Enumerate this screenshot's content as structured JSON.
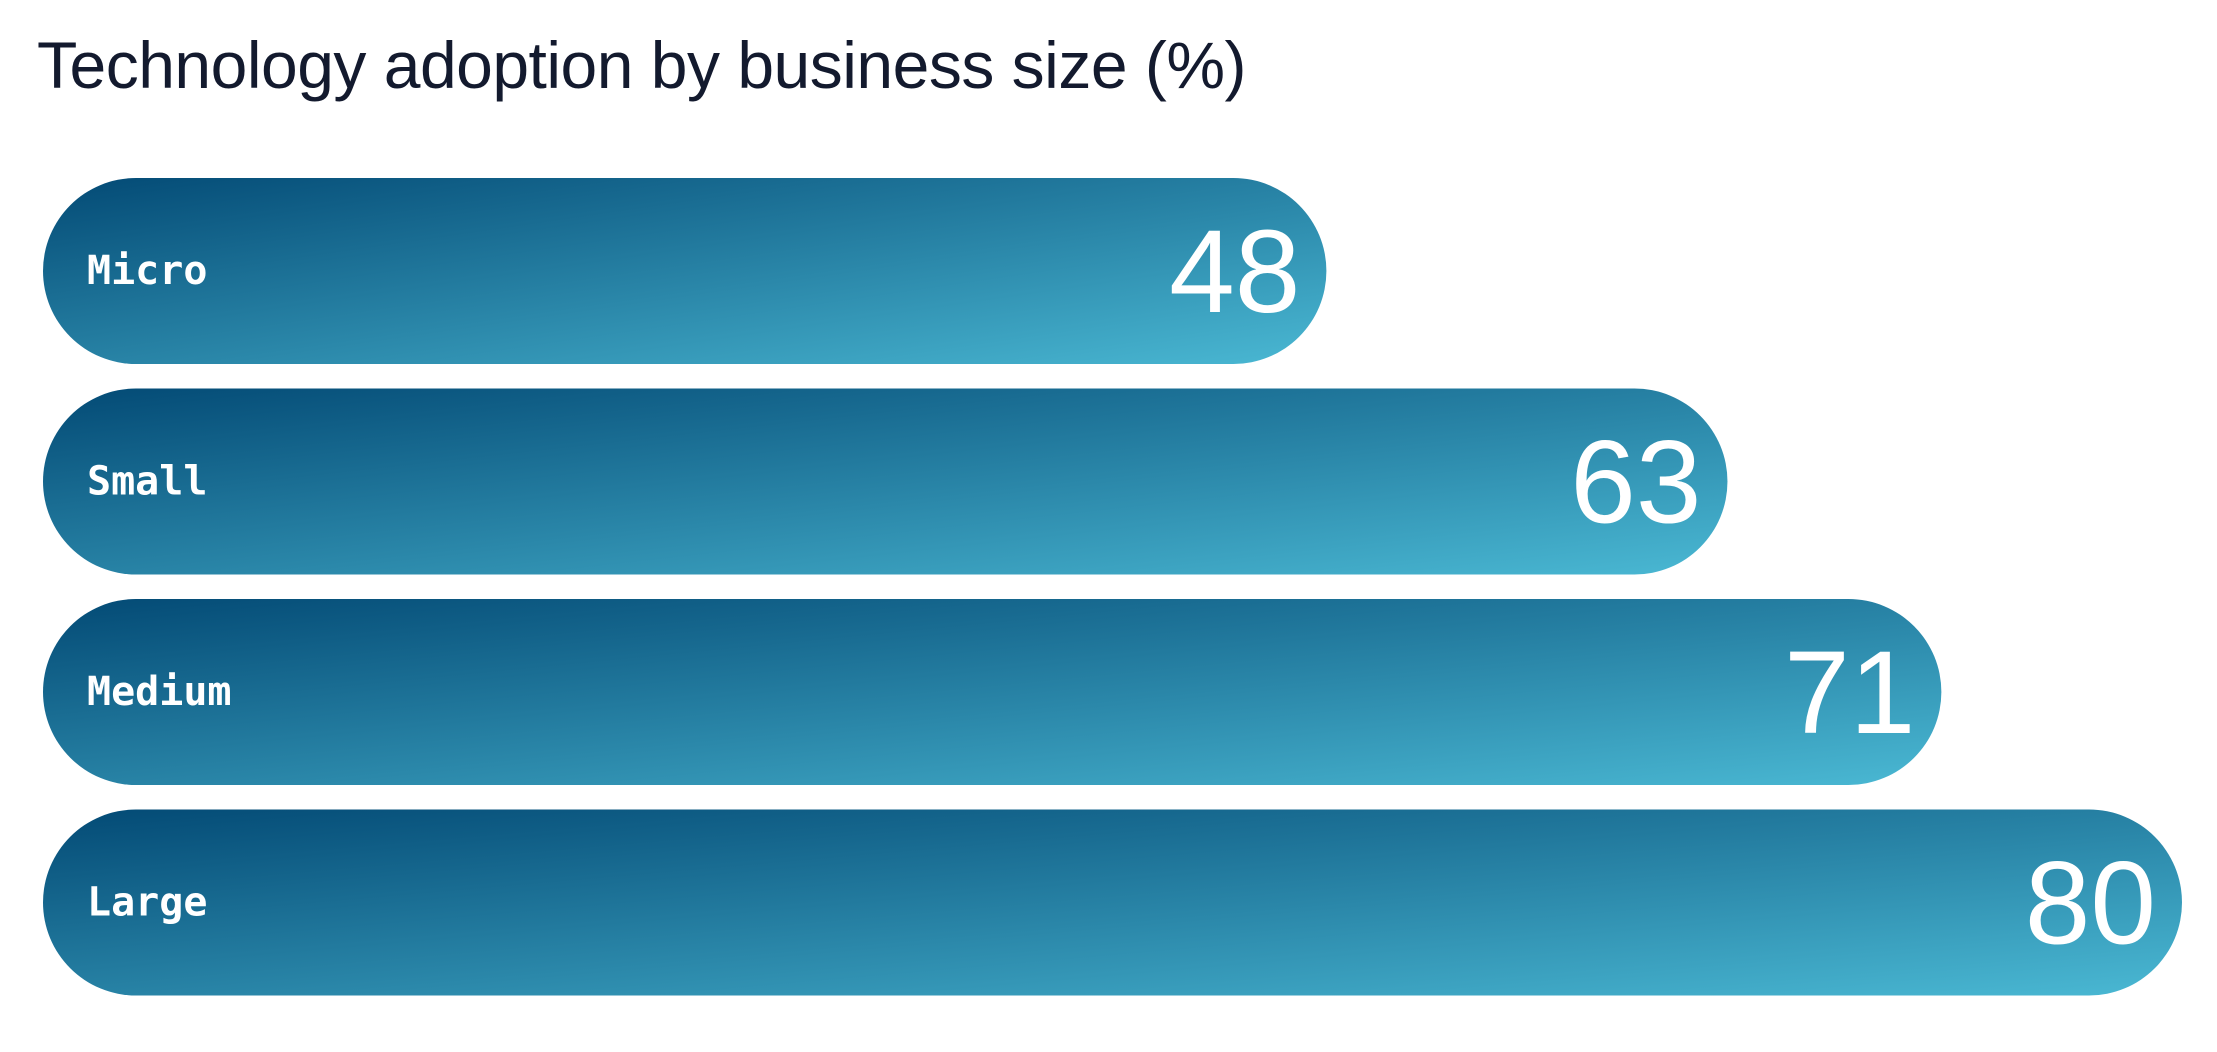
{
  "chart_data": {
    "type": "bar",
    "orientation": "horizontal",
    "title": "Technology adoption by business size (%)",
    "categories": [
      "Micro",
      "Small",
      "Medium",
      "Large"
    ],
    "values": [
      48,
      63,
      71,
      80
    ],
    "value_labels": [
      "48",
      "63",
      "71",
      "80"
    ],
    "xlim": [
      0,
      80
    ],
    "grid": false,
    "legend": "none",
    "colors": {
      "gradient_start": "#034a75",
      "gradient_end": "#4ab8d3",
      "label_text": "#ffffff",
      "title_text": "#131a2e"
    }
  }
}
